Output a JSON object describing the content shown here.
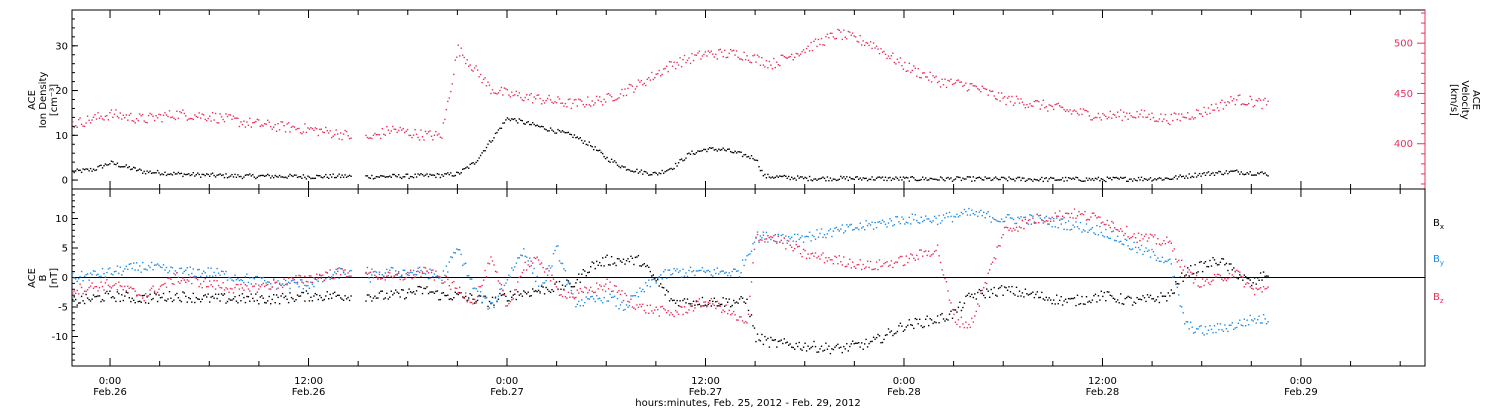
{
  "chart_data": [
    {
      "type": "scatter",
      "panel": "top",
      "left_axis": {
        "label_lines": [
          "ACE",
          "Ion Density",
          "[cm⁻³]"
        ],
        "ylim": [
          -2,
          38
        ],
        "ticks": [
          0,
          10,
          20,
          30
        ],
        "color": "#000000"
      },
      "right_axis": {
        "label_lines": [
          "ACE",
          "Velocity",
          "[km/s]"
        ],
        "ylim": [
          355,
          533
        ],
        "ticks": [
          400,
          450,
          500
        ],
        "color": "#e8305a"
      },
      "series": [
        {
          "axis": "left",
          "color": "#000000",
          "points": [
            [
              -2.3,
              2
            ],
            [
              -1,
              2.5
            ],
            [
              0,
              4
            ],
            [
              1,
              3
            ],
            [
              2,
              2
            ],
            [
              3,
              1.8
            ],
            [
              4,
              1.5
            ],
            [
              6,
              1.2
            ],
            [
              8,
              1
            ],
            [
              10,
              1
            ],
            [
              12,
              0.9
            ],
            [
              14,
              1
            ],
            [
              15.5,
              0.9
            ],
            [
              18,
              1
            ],
            [
              20,
              1.2
            ],
            [
              21,
              1.5
            ],
            [
              22,
              4
            ],
            [
              23,
              9
            ],
            [
              24,
              14
            ],
            [
              25,
              13
            ],
            [
              26,
              12
            ],
            [
              27,
              11
            ],
            [
              28,
              10
            ],
            [
              29,
              8
            ],
            [
              30,
              5
            ],
            [
              31,
              3
            ],
            [
              32,
              2
            ],
            [
              33,
              1.5
            ],
            [
              34,
              3
            ],
            [
              35,
              6
            ],
            [
              36,
              7
            ],
            [
              37,
              7
            ],
            [
              38,
              6
            ],
            [
              39,
              5
            ],
            [
              39.5,
              1
            ],
            [
              42,
              0.5
            ],
            [
              46,
              0.5
            ],
            [
              48,
              0.4
            ],
            [
              52,
              0.4
            ],
            [
              56,
              0.3
            ],
            [
              60,
              0.3
            ],
            [
              64,
              0.5
            ],
            [
              66,
              1.5
            ],
            [
              68,
              2
            ],
            [
              70,
              1.5
            ]
          ]
        },
        {
          "axis": "right",
          "color": "#e8305a",
          "points": [
            [
              -2.3,
              420
            ],
            [
              0,
              430
            ],
            [
              2,
              425
            ],
            [
              4,
              430
            ],
            [
              6,
              428
            ],
            [
              8,
              422
            ],
            [
              10,
              418
            ],
            [
              12,
              415
            ],
            [
              14,
              410
            ],
            [
              15.5,
              405
            ],
            [
              17,
              415
            ],
            [
              18.5,
              410
            ],
            [
              20,
              408
            ],
            [
              21,
              495
            ],
            [
              22,
              475
            ],
            [
              23,
              455
            ],
            [
              24,
              450
            ],
            [
              26,
              445
            ],
            [
              28,
              440
            ],
            [
              30,
              445
            ],
            [
              32,
              460
            ],
            [
              34,
              480
            ],
            [
              36,
              490
            ],
            [
              38,
              490
            ],
            [
              40,
              480
            ],
            [
              42,
              495
            ],
            [
              44,
              510
            ],
            [
              46,
              500
            ],
            [
              48,
              478
            ],
            [
              50,
              463
            ],
            [
              52,
              458
            ],
            [
              54,
              445
            ],
            [
              56,
              440
            ],
            [
              58,
              433
            ],
            [
              60,
              428
            ],
            [
              62,
              430
            ],
            [
              64,
              425
            ],
            [
              66,
              432
            ],
            [
              68,
              445
            ],
            [
              70,
              440
            ]
          ]
        }
      ]
    },
    {
      "type": "scatter",
      "panel": "bottom",
      "left_axis": {
        "label_lines": [
          "ACE",
          "B",
          "[nT]"
        ],
        "ylim": [
          -15,
          15
        ],
        "ticks": [
          -10,
          -5,
          0,
          5,
          10
        ],
        "color": "#000000"
      },
      "zero_line": true,
      "legend_position": "right",
      "series": [
        {
          "name_main": "B",
          "name_sub": "x",
          "color": "#000000",
          "points": [
            [
              -2.3,
              -4
            ],
            [
              0,
              -3
            ],
            [
              2,
              -3.5
            ],
            [
              4,
              -3
            ],
            [
              6,
              -3.5
            ],
            [
              8,
              -3.5
            ],
            [
              10,
              -3.5
            ],
            [
              12,
              -3
            ],
            [
              14,
              -3
            ],
            [
              15.5,
              -3
            ],
            [
              17,
              -3
            ],
            [
              19,
              -2
            ],
            [
              20,
              -3
            ],
            [
              21,
              -3
            ],
            [
              23,
              -4
            ],
            [
              24,
              -3
            ],
            [
              26,
              -2
            ],
            [
              28,
              -1
            ],
            [
              29,
              2
            ],
            [
              30,
              3
            ],
            [
              32,
              3
            ],
            [
              34,
              -4
            ],
            [
              36,
              -4
            ],
            [
              37,
              -4
            ],
            [
              38.5,
              -4
            ],
            [
              39,
              -10
            ],
            [
              40,
              -11
            ],
            [
              42,
              -11.5
            ],
            [
              44,
              -12
            ],
            [
              46,
              -11
            ],
            [
              48,
              -8
            ],
            [
              50,
              -7
            ],
            [
              51,
              -6
            ],
            [
              52,
              -3
            ],
            [
              54,
              -2
            ],
            [
              56,
              -3
            ],
            [
              58,
              -4
            ],
            [
              60,
              -3
            ],
            [
              62,
              -4
            ],
            [
              64,
              -3
            ],
            [
              65,
              1
            ],
            [
              66,
              2
            ],
            [
              67,
              3
            ],
            [
              68,
              1
            ],
            [
              69,
              -1
            ],
            [
              70,
              1
            ]
          ]
        },
        {
          "name_main": "B",
          "name_sub": "y",
          "color": "#1f8ce6",
          "points": [
            [
              -2.3,
              0
            ],
            [
              0,
              1
            ],
            [
              2,
              2
            ],
            [
              4,
              1
            ],
            [
              6,
              1
            ],
            [
              8,
              0
            ],
            [
              10,
              -1
            ],
            [
              12,
              -1
            ],
            [
              14,
              1
            ],
            [
              15.5,
              0
            ],
            [
              17,
              1
            ],
            [
              19,
              1
            ],
            [
              20,
              0
            ],
            [
              21,
              5
            ],
            [
              22,
              -2
            ],
            [
              23,
              -5
            ],
            [
              24,
              0
            ],
            [
              25,
              5
            ],
            [
              26,
              -2
            ],
            [
              27,
              5
            ],
            [
              28,
              -4
            ],
            [
              29,
              -4
            ],
            [
              30,
              -3
            ],
            [
              31,
              -5
            ],
            [
              33,
              0
            ],
            [
              34,
              1
            ],
            [
              36,
              1
            ],
            [
              38,
              1
            ],
            [
              39,
              7
            ],
            [
              40,
              7
            ],
            [
              42,
              7
            ],
            [
              44,
              8
            ],
            [
              46,
              9
            ],
            [
              48,
              10
            ],
            [
              50,
              10
            ],
            [
              52,
              11
            ],
            [
              54,
              10
            ],
            [
              56,
              10
            ],
            [
              58,
              9
            ],
            [
              60,
              8
            ],
            [
              62,
              5
            ],
            [
              64,
              3
            ],
            [
              65,
              -8
            ],
            [
              66,
              -9
            ],
            [
              68,
              -8
            ],
            [
              69,
              -7
            ],
            [
              70,
              -7
            ]
          ]
        },
        {
          "name_main": "B",
          "name_sub": "z",
          "color": "#e8305a",
          "points": [
            [
              -2.3,
              -2
            ],
            [
              0,
              -1
            ],
            [
              2,
              -3
            ],
            [
              4,
              0
            ],
            [
              6,
              -1
            ],
            [
              8,
              -2
            ],
            [
              10,
              -1
            ],
            [
              12,
              0
            ],
            [
              14,
              1
            ],
            [
              15.5,
              1
            ],
            [
              17,
              0
            ],
            [
              19,
              1
            ],
            [
              20,
              0
            ],
            [
              21,
              -2
            ],
            [
              22,
              -4
            ],
            [
              23,
              3
            ],
            [
              24,
              -5
            ],
            [
              25,
              2
            ],
            [
              26,
              3
            ],
            [
              27,
              -2
            ],
            [
              28,
              -3
            ],
            [
              30,
              -1
            ],
            [
              32,
              -5
            ],
            [
              34,
              -6
            ],
            [
              36,
              -4
            ],
            [
              37,
              -5
            ],
            [
              38.5,
              -8
            ],
            [
              39,
              7
            ],
            [
              40,
              7
            ],
            [
              42,
              4
            ],
            [
              44,
              3
            ],
            [
              46,
              2
            ],
            [
              48,
              3
            ],
            [
              50,
              5
            ],
            [
              51,
              -7
            ],
            [
              52,
              -8
            ],
            [
              54,
              8
            ],
            [
              56,
              10
            ],
            [
              58,
              11
            ],
            [
              60,
              10
            ],
            [
              62,
              7
            ],
            [
              64,
              6
            ],
            [
              65,
              1
            ],
            [
              66,
              -1
            ],
            [
              68,
              1
            ],
            [
              69,
              -2
            ],
            [
              70,
              -2
            ]
          ]
        }
      ]
    }
  ],
  "x_axis": {
    "range_hours": [
      -2.3,
      79.5
    ],
    "major_ticks": [
      {
        "hour": 0,
        "time": "0:00",
        "date": "Feb.26"
      },
      {
        "hour": 12,
        "time": "12:00",
        "date": "Feb.26"
      },
      {
        "hour": 24,
        "time": "0:00",
        "date": "Feb.27"
      },
      {
        "hour": 36,
        "time": "12:00",
        "date": "Feb.27"
      },
      {
        "hour": 48,
        "time": "0:00",
        "date": "Feb.28"
      },
      {
        "hour": 60,
        "time": "12:00",
        "date": "Feb.28"
      },
      {
        "hour": 72,
        "time": "0:00",
        "date": "Feb.29"
      }
    ],
    "xlabel": "hours:minutes, Feb. 25, 2012 - Feb. 29, 2012"
  },
  "colors": {
    "density": "#000000",
    "velocity": "#e8305a",
    "bx": "#000000",
    "by": "#1f8ce6",
    "bz": "#e8305a",
    "axis": "#000000"
  }
}
